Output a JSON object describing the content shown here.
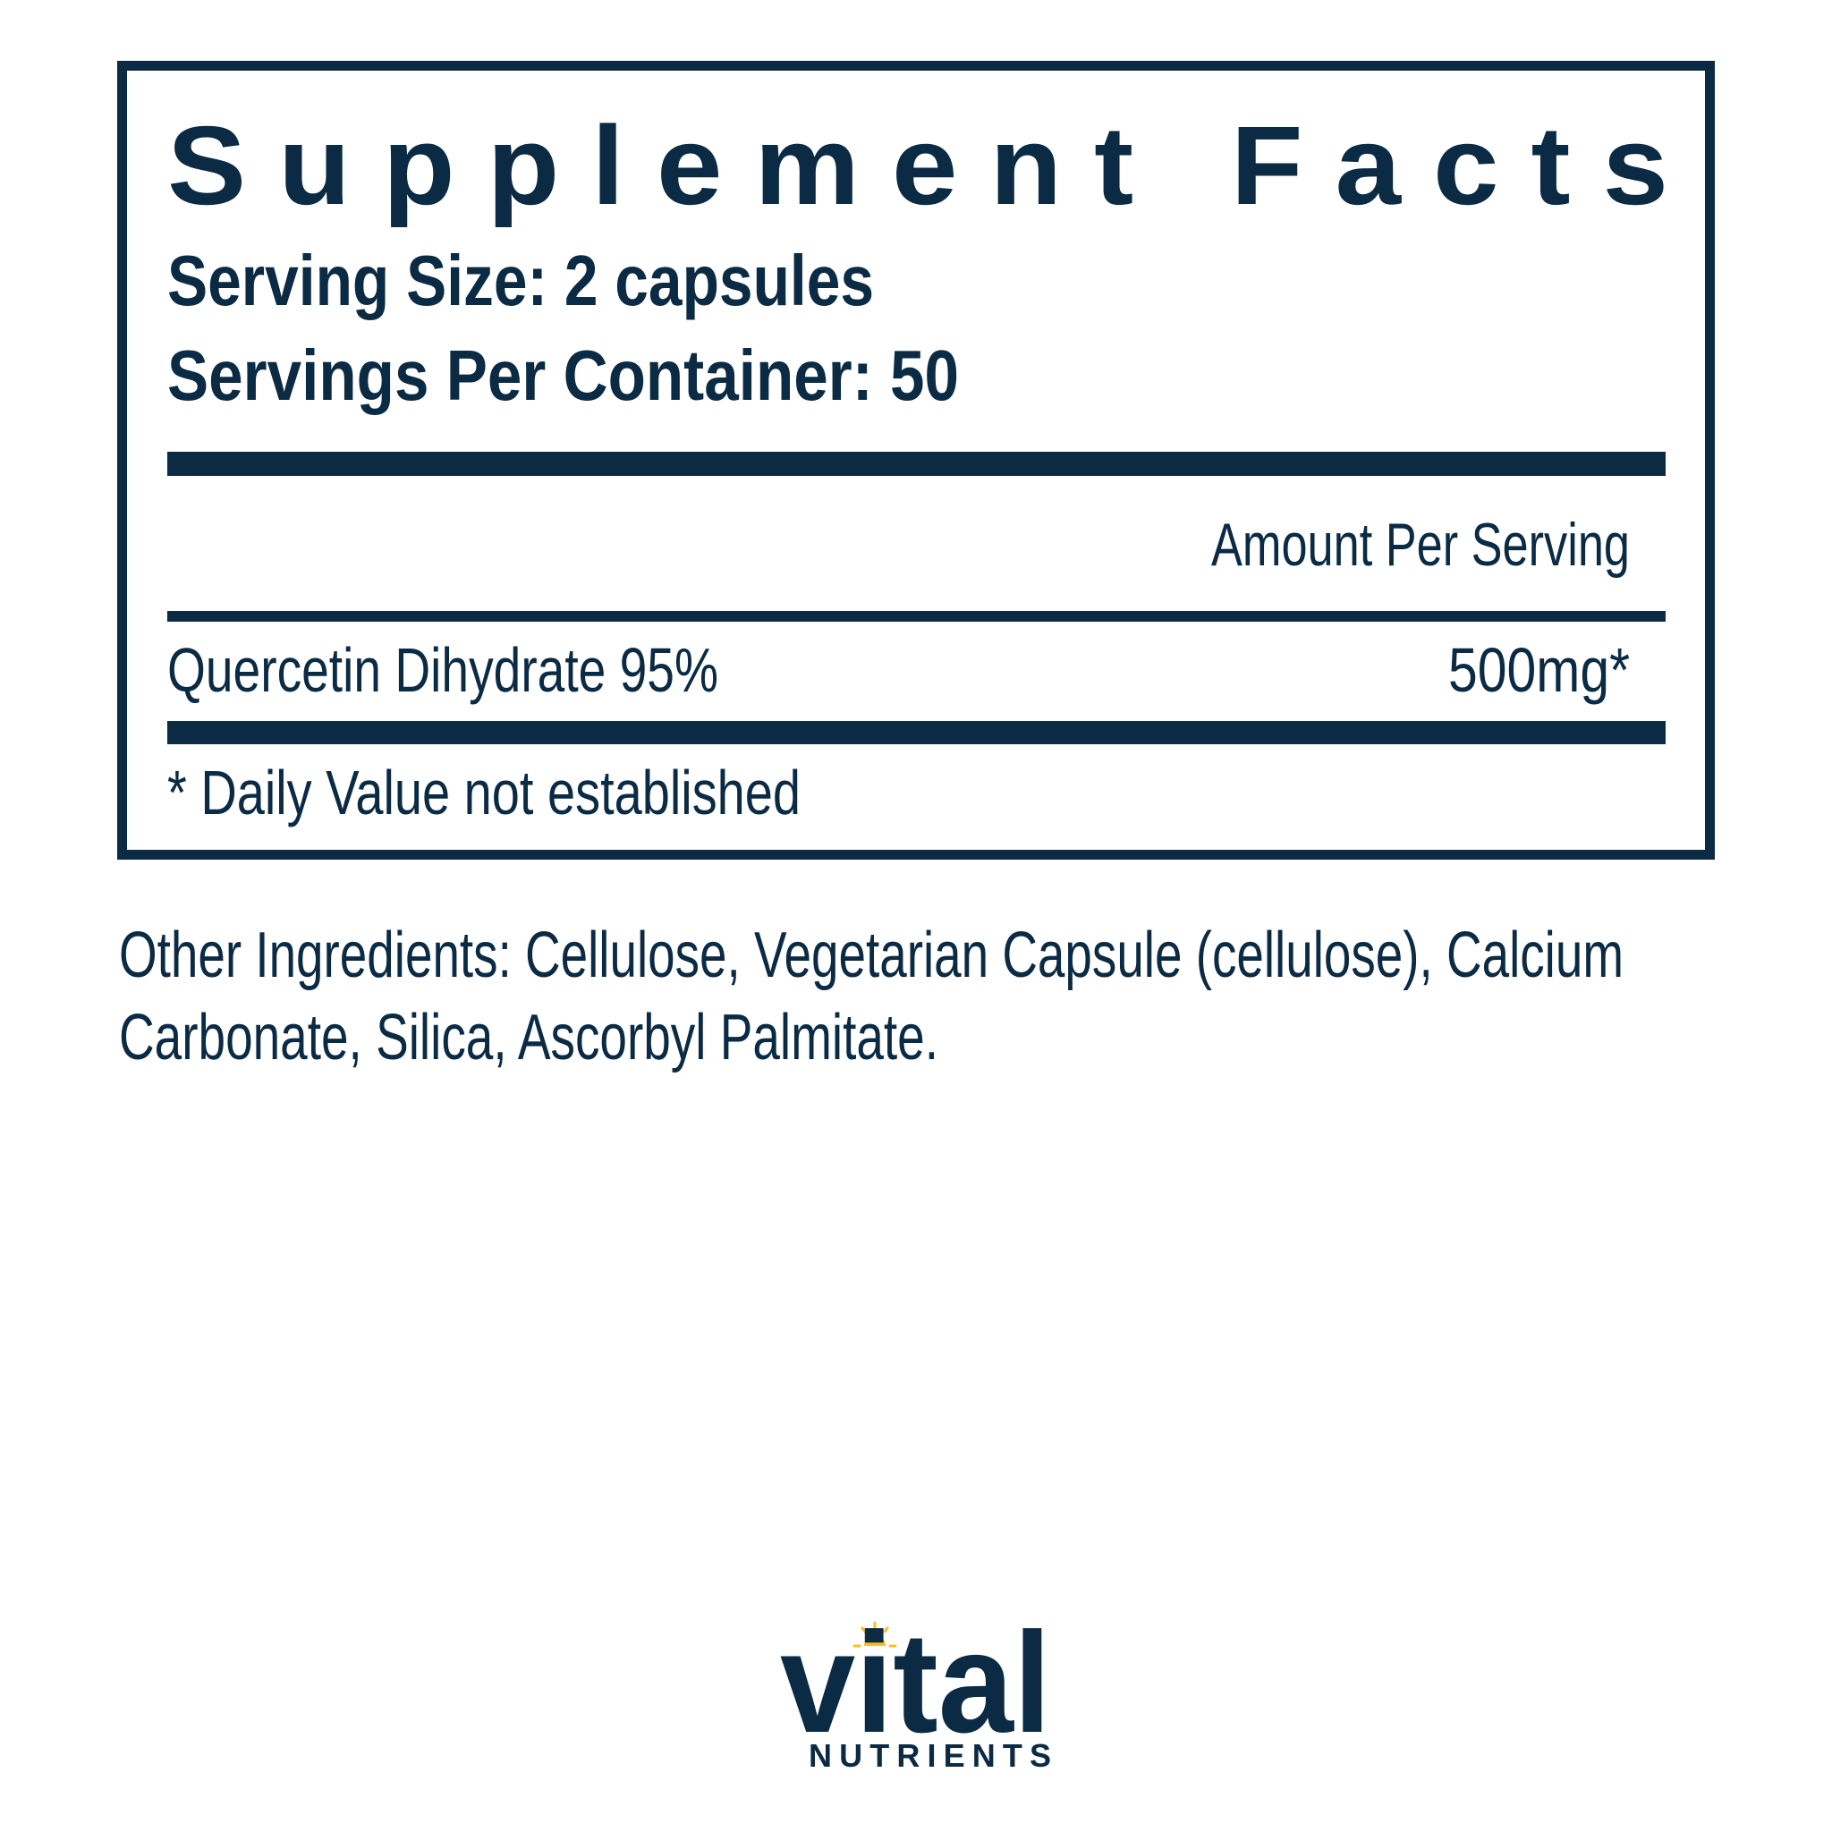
{
  "label": {
    "title": "Supplement Facts",
    "serving_size": "Serving Size: 2 capsules",
    "servings_per_container": "Servings Per Container: 50",
    "amount_header": "Amount Per Serving",
    "ingredients": [
      {
        "name": "Quercetin Dihydrate 95%",
        "amount": "500mg*"
      }
    ],
    "footnote": "* Daily Value not established"
  },
  "other_ingredients": {
    "line1": "Other Ingredients: Cellulose, Vegetarian Capsule (cellulose), Calcium",
    "line2": "Carbonate, Silica, Ascorbyl Palmitate."
  },
  "brand": {
    "name": "vital",
    "sub": "NUTRIENTS"
  },
  "colors": {
    "navy": "#0b2a44",
    "sun": "#f5c21b"
  }
}
